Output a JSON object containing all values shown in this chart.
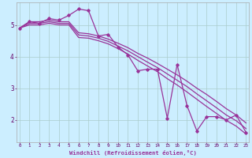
{
  "xlabel": "Windchill (Refroidissement éolien,°C)",
  "bg_color": "#cceeff",
  "axis_bg": "#330033",
  "line_color": "#993399",
  "grid_color": "#aacccc",
  "x_ticks": [
    0,
    1,
    2,
    3,
    4,
    5,
    6,
    7,
    8,
    9,
    10,
    11,
    12,
    13,
    14,
    15,
    16,
    17,
    18,
    19,
    20,
    21,
    22,
    23
  ],
  "y_ticks": [
    2,
    3,
    4,
    5
  ],
  "xlim": [
    -0.3,
    23.3
  ],
  "ylim": [
    1.3,
    5.7
  ],
  "zigzag": [
    4.9,
    5.1,
    5.05,
    5.2,
    5.15,
    5.3,
    5.5,
    5.45,
    4.65,
    4.7,
    4.3,
    4.05,
    3.55,
    3.6,
    3.6,
    2.05,
    3.75,
    2.45,
    1.65,
    2.1,
    2.1,
    2.0,
    2.15,
    1.6
  ],
  "trend1": [
    4.9,
    5.1,
    5.1,
    5.15,
    5.1,
    5.1,
    4.75,
    4.72,
    4.65,
    4.55,
    4.42,
    4.28,
    4.1,
    3.95,
    3.78,
    3.6,
    3.42,
    3.22,
    3.0,
    2.8,
    2.58,
    2.35,
    2.15,
    1.9
  ],
  "trend2": [
    4.9,
    5.05,
    5.05,
    5.1,
    5.05,
    5.05,
    4.68,
    4.65,
    4.58,
    4.48,
    4.33,
    4.18,
    4.0,
    3.82,
    3.65,
    3.45,
    3.25,
    3.05,
    2.82,
    2.6,
    2.38,
    2.15,
    1.97,
    1.72
  ],
  "trend3": [
    4.9,
    5.0,
    5.0,
    5.05,
    5.0,
    5.0,
    4.6,
    4.58,
    4.5,
    4.4,
    4.25,
    4.08,
    3.88,
    3.7,
    3.52,
    3.3,
    3.1,
    2.88,
    2.65,
    2.42,
    2.2,
    1.98,
    1.8,
    1.55
  ]
}
